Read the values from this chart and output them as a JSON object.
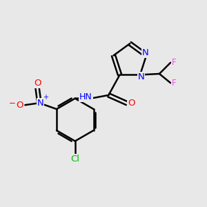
{
  "background_color": "#e8e8e8",
  "bond_color": "#000000",
  "atom_colors": {
    "N": "#0000ff",
    "O": "#ff0000",
    "F": "#ff44ff",
    "Cl": "#00bb00",
    "C": "#000000",
    "H": "#555555"
  },
  "figsize": [
    3.0,
    3.0
  ],
  "dpi": 100,
  "lw": 1.8,
  "fs": 8.5
}
